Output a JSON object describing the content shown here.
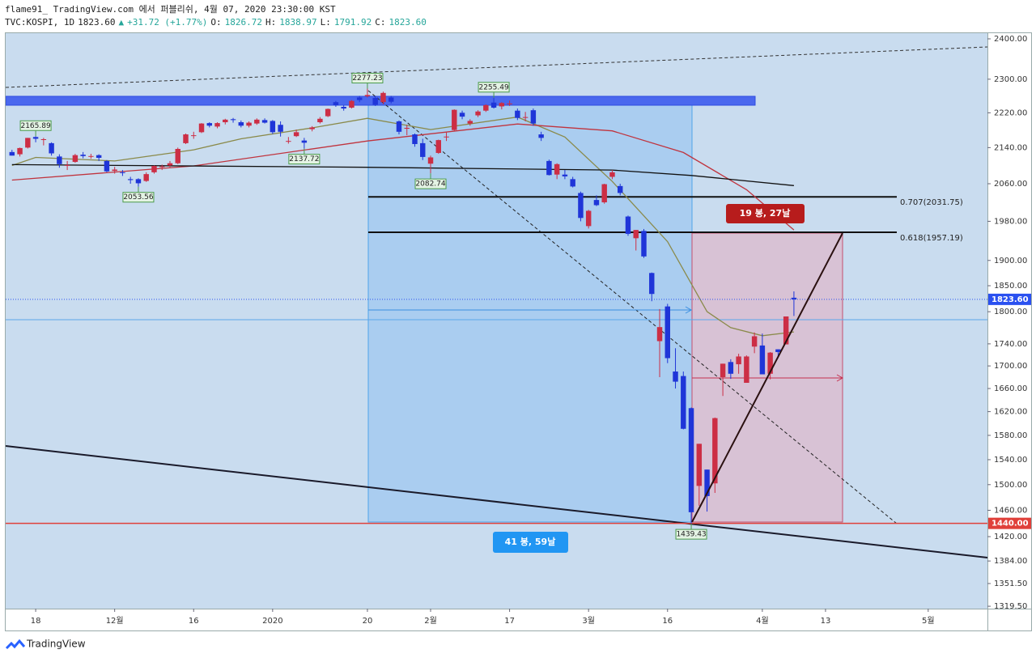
{
  "chart_data": {
    "type": "candlestick",
    "title": "flame91_ TradingView.com 에서 퍼블리쉬, 4월 07, 2020 23:30:00 KST",
    "legend_line": [
      {
        "text": "TVC:KOSPI, 1D"
      },
      {
        "text": "1823.60"
      },
      {
        "text": "▲",
        "color": "#26a69a"
      },
      {
        "text": "+31.72 (+1.77%)",
        "color": "#26a69a"
      },
      {
        "text": "O:"
      },
      {
        "text": "1826.72",
        "color": "#26a69a"
      },
      {
        "text": "H:"
      },
      {
        "text": "1838.97",
        "color": "#26a69a"
      },
      {
        "text": "L:"
      },
      {
        "text": "1791.92",
        "color": "#26a69a"
      },
      {
        "text": "C:"
      },
      {
        "text": "1823.60",
        "color": "#26a69a"
      }
    ],
    "log_scale": true,
    "grid": false,
    "up_color": "#cc2e45",
    "down_color": "#1f35d8",
    "ylim": [
      1316.2,
      2416.4
    ],
    "yticks": [
      {
        "value": 2400,
        "label": "2400.00"
      },
      {
        "value": 2300,
        "label": "2300.00"
      },
      {
        "value": 2220,
        "label": "2220.00"
      },
      {
        "value": 2140,
        "label": "2140.00"
      },
      {
        "value": 2060,
        "label": "2060.00"
      },
      {
        "value": 1980,
        "label": "1980.00"
      },
      {
        "value": 1900,
        "label": "1900.00"
      },
      {
        "value": 1850,
        "label": "1850.00"
      },
      {
        "value": 1800,
        "label": "1800.00"
      },
      {
        "value": 1740,
        "label": "1740.00"
      },
      {
        "value": 1700,
        "label": "1700.00"
      },
      {
        "value": 1660,
        "label": "1660.00"
      },
      {
        "value": 1620,
        "label": "1620.00"
      },
      {
        "value": 1580,
        "label": "1580.00"
      },
      {
        "value": 1540,
        "label": "1540.00"
      },
      {
        "value": 1500,
        "label": "1500.00"
      },
      {
        "value": 1460,
        "label": "1460.00"
      },
      {
        "value": 1420,
        "label": "1420.00"
      },
      {
        "value": 1384,
        "label": "1384.00"
      },
      {
        "value": 1351.5,
        "label": "1351.50"
      },
      {
        "value": 1319.5,
        "label": "1319.50"
      }
    ],
    "xlim": [
      -33.8,
      90.5
    ],
    "xticks": [
      {
        "value": -30,
        "label": "18"
      },
      {
        "value": -20,
        "label": "12월"
      },
      {
        "value": -10,
        "label": "16"
      },
      {
        "value": 0,
        "label": "2020"
      },
      {
        "value": 12,
        "label": "20"
      },
      {
        "value": 20,
        "label": "2월"
      },
      {
        "value": 30,
        "label": "17"
      },
      {
        "value": 40,
        "label": "3월"
      },
      {
        "value": 50,
        "label": "16"
      },
      {
        "value": 62,
        "label": "4월"
      },
      {
        "value": 70,
        "label": "13"
      },
      {
        "value": 83,
        "label": "5월"
      }
    ],
    "candles": {
      "x": [
        -33,
        -32,
        -31,
        -30,
        -29,
        -28,
        -27,
        -26,
        -25,
        -24,
        -23,
        -22,
        -21,
        -20,
        -19,
        -18,
        -17,
        -16,
        -15,
        -14,
        -13,
        -12,
        -11,
        -10,
        -9,
        -8,
        -7,
        -6,
        -5,
        -4,
        -3,
        -2,
        -1,
        0,
        1,
        2,
        3,
        4,
        5,
        6,
        7,
        8,
        9,
        10,
        11,
        12,
        13,
        14,
        15,
        16,
        17,
        18,
        19,
        20,
        21,
        22,
        23,
        24,
        25,
        26,
        27,
        28,
        29,
        30,
        31,
        32,
        33,
        34,
        35,
        36,
        37,
        38,
        39,
        40,
        41,
        42,
        43,
        44,
        45,
        46,
        47,
        48,
        49,
        50,
        51,
        52,
        53,
        54,
        55,
        56,
        57,
        58,
        59,
        60,
        61,
        62,
        63,
        64,
        65,
        66
      ],
      "open": [
        2130,
        2125,
        2140,
        2164,
        2158,
        2150,
        2120,
        2100,
        2108,
        2124,
        2120,
        2123,
        2110,
        2088,
        2085,
        2070,
        2070,
        2066,
        2085,
        2097,
        2100,
        2105,
        2150,
        2168,
        2175,
        2196,
        2188,
        2198,
        2205,
        2198,
        2190,
        2195,
        2203,
        2201,
        2192,
        2155,
        2166,
        2156,
        2182,
        2198,
        2212,
        2245,
        2234,
        2232,
        2256,
        2259,
        2255,
        2245,
        2256,
        2200,
        2183,
        2170,
        2150,
        2104,
        2128,
        2165,
        2180,
        2220,
        2195,
        2214,
        2225,
        2244,
        2235,
        2240,
        2225,
        2210,
        2226,
        2170,
        2110,
        2080,
        2080,
        2070,
        2040,
        1970,
        2025,
        2020,
        2075,
        2055,
        1990,
        1945,
        1960,
        1875,
        1745,
        1810,
        1690,
        1682,
        1626,
        1498,
        1524,
        1502,
        1680,
        1707,
        1703,
        1670,
        1735,
        1737,
        1686,
        1730,
        1739,
        1826.72
      ],
      "high": [
        2135,
        2140,
        2162,
        2165.89,
        2162,
        2152,
        2125,
        2110,
        2126,
        2130,
        2126,
        2125,
        2112,
        2097,
        2090,
        2075,
        2072,
        2085,
        2100,
        2102,
        2110,
        2140,
        2172,
        2176,
        2196,
        2198,
        2198,
        2206,
        2208,
        2202,
        2200,
        2207,
        2207,
        2203,
        2200,
        2164,
        2181,
        2162,
        2189,
        2210,
        2230,
        2248,
        2238,
        2250,
        2260,
        2277.23,
        2260,
        2270,
        2260,
        2202,
        2192,
        2172,
        2160,
        2122,
        2158,
        2175,
        2228,
        2225,
        2205,
        2226,
        2240,
        2255.49,
        2245,
        2249,
        2230,
        2222,
        2230,
        2176,
        2113,
        2105,
        2090,
        2075,
        2043,
        2004,
        2035,
        2060,
        2090,
        2060,
        1992,
        1962,
        1964,
        1876,
        1805,
        1815,
        1732,
        1690,
        1627,
        1566,
        1524,
        1610,
        1704,
        1712,
        1722,
        1719,
        1761,
        1759,
        1725,
        1730,
        1791,
        1838.97
      ],
      "low": [
        2122,
        2120,
        2138,
        2152,
        2145,
        2122,
        2095,
        2090,
        2106,
        2116,
        2115,
        2110,
        2085,
        2082,
        2077,
        2060,
        2053.56,
        2064,
        2082,
        2090,
        2096,
        2103,
        2148,
        2160,
        2173,
        2186,
        2184,
        2193,
        2197,
        2186,
        2186,
        2192,
        2195,
        2171,
        2165,
        2149,
        2164,
        2137.72,
        2177,
        2195,
        2210,
        2234,
        2225,
        2230,
        2245,
        2256,
        2236,
        2240,
        2242,
        2170,
        2168,
        2142,
        2112,
        2082.74,
        2126,
        2155,
        2178,
        2205,
        2190,
        2210,
        2222,
        2230,
        2228,
        2236,
        2203,
        2200,
        2190,
        2155,
        2078,
        2070,
        2070,
        2052,
        1980,
        1965,
        2012,
        2017,
        2070,
        2035,
        1950,
        1920,
        1905,
        1820,
        1680,
        1705,
        1660,
        1590,
        1439.43,
        1467,
        1458,
        1487,
        1647,
        1677,
        1686,
        1670,
        1723,
        1685,
        1676,
        1714,
        1739,
        1791.92
      ],
      "close": [
        2122,
        2139,
        2162,
        2160,
        2159,
        2127,
        2103,
        2101,
        2123,
        2121,
        2121,
        2117,
        2087,
        2091,
        2084,
        2068,
        2061,
        2081,
        2099,
        2098,
        2105,
        2137,
        2170,
        2168,
        2195,
        2190,
        2196,
        2204,
        2203,
        2190,
        2197,
        2204,
        2197,
        2175,
        2176,
        2155,
        2175,
        2151,
        2186,
        2206,
        2229,
        2238,
        2230,
        2248,
        2250,
        2262,
        2239,
        2267,
        2246,
        2176,
        2185,
        2148,
        2119,
        2118,
        2157,
        2165,
        2227,
        2211,
        2201,
        2223,
        2238,
        2232,
        2243,
        2242,
        2208,
        2210,
        2195,
        2162,
        2079,
        2103,
        2076,
        2054,
        1987,
        2002,
        2014,
        2059,
        2085,
        2040,
        1954,
        1962,
        1908,
        1834,
        1771,
        1714,
        1672,
        1591,
        1457,
        1566,
        1482,
        1609,
        1704,
        1686,
        1717,
        1717,
        1754,
        1685,
        1724,
        1725,
        1791,
        1823.6
      ]
    },
    "lines": [
      {
        "color": "#8a8a4a",
        "x": [
          -33,
          -30,
          -20,
          -10,
          -4,
          5,
          12,
          20,
          31,
          37,
          43,
          50,
          55,
          58,
          62,
          66
        ],
        "values": [
          2100,
          2118,
          2110,
          2135,
          2160,
          2185,
          2207,
          2181,
          2210,
          2164,
          2065,
          1938,
          1800,
          1770,
          1755,
          1762
        ]
      },
      {
        "color": "#c0343e",
        "x": [
          -33,
          -10,
          12,
          31,
          43,
          52,
          60,
          66
        ],
        "values": [
          2068,
          2099,
          2155,
          2194,
          2178,
          2129,
          2047,
          1962
        ]
      },
      {
        "color": "#111111",
        "x": [
          -33,
          12,
          43,
          53,
          66
        ],
        "values": [
          2102,
          2096,
          2090,
          2078,
          2056
        ]
      }
    ],
    "annotations": [
      {
        "x": -30,
        "value": 2165.89
      },
      {
        "x": -17,
        "value": 2053.56
      },
      {
        "x": 4,
        "value": 2137.72
      },
      {
        "x": 12,
        "value": 2277.23
      },
      {
        "x": 20,
        "value": 2082.74
      },
      {
        "x": 28,
        "value": 2255.49
      },
      {
        "x": 53,
        "value": 1439.43
      }
    ],
    "levels": [
      {
        "value": 2031.75,
        "label": "0.707(2031.75)"
      },
      {
        "value": 1957.19,
        "label": "0.618(1957.19)"
      }
    ],
    "price_lines": [
      {
        "value": 1823.6,
        "label": "1823.60",
        "color": "#2a50f0"
      },
      {
        "value": 1440,
        "label": "1440.00",
        "color": "#e0403a"
      }
    ],
    "measures": [
      {
        "label": "41 봉, 59날"
      },
      {
        "label": "19 봉, 27날"
      }
    ],
    "footer": "TradingView"
  }
}
